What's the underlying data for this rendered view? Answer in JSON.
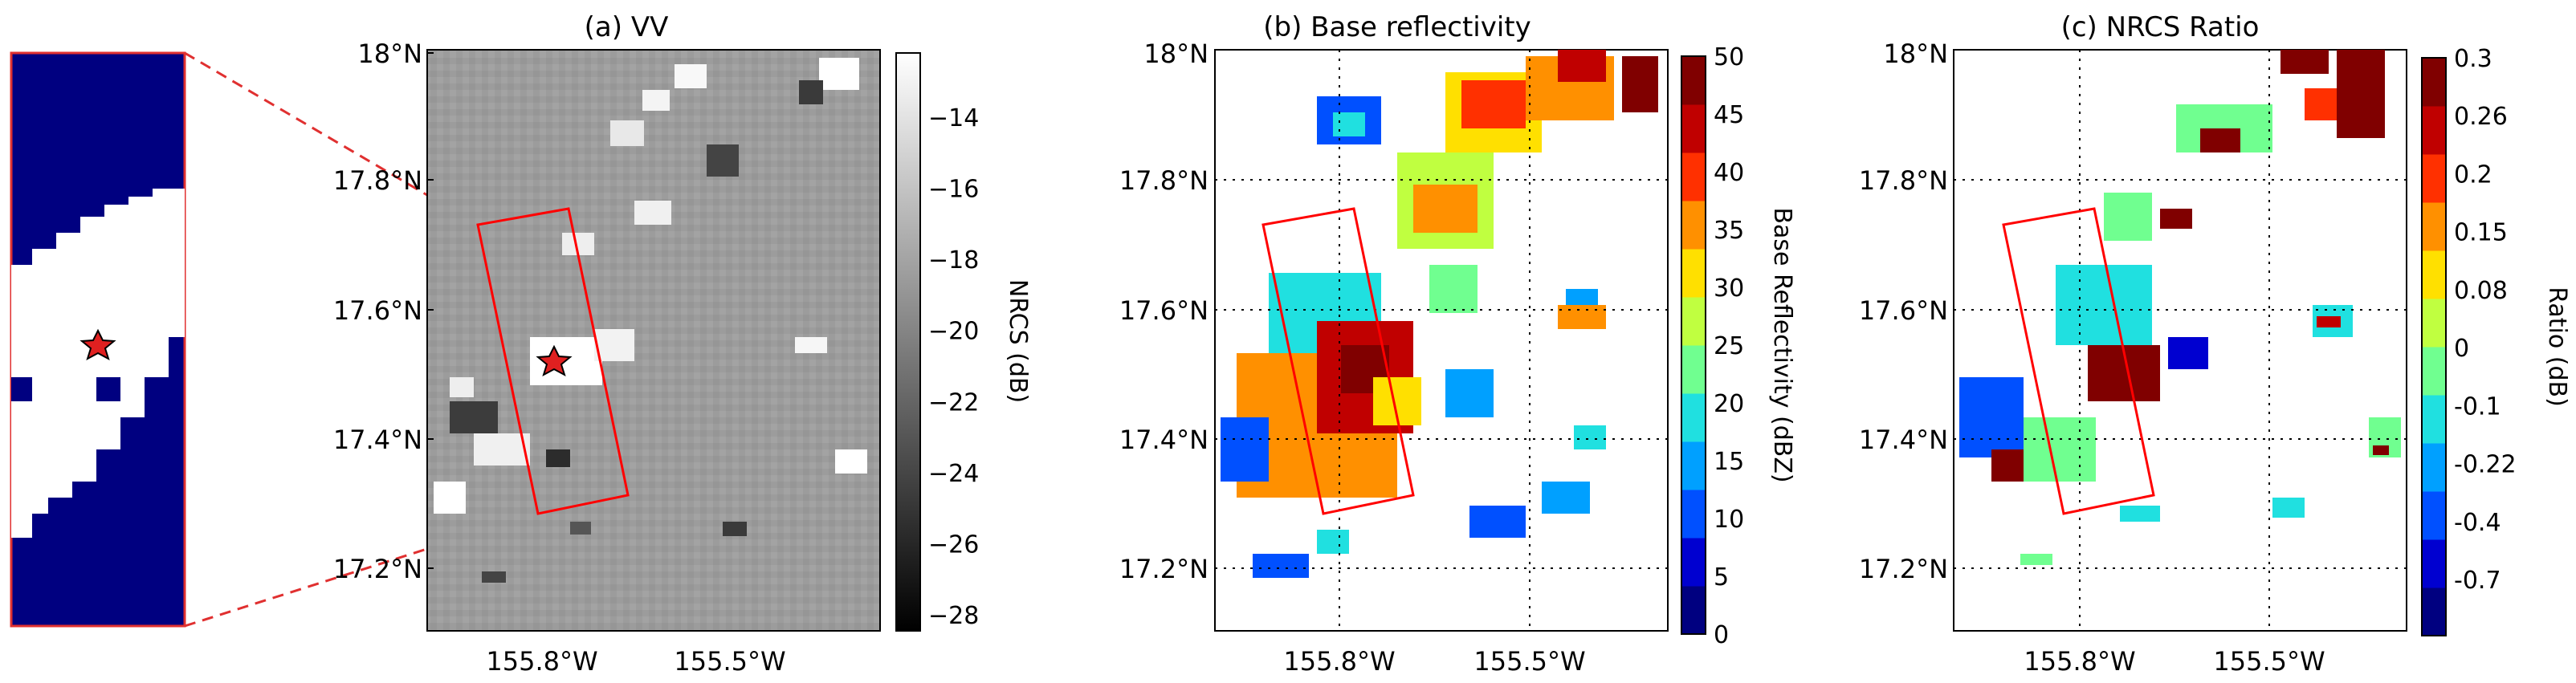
{
  "inset": {
    "star": "star"
  },
  "panels": {
    "a": {
      "title": "(a) VV",
      "y_ticks": [
        "18°N",
        "17.8°N",
        "17.6°N",
        "17.4°N",
        "17.2°N"
      ],
      "x_ticks": [
        "155.8°W",
        "155.5°W"
      ],
      "colorbar": {
        "label": "NRCS (dB)",
        "ticks": [
          "−14",
          "−16",
          "−18",
          "−20",
          "−22",
          "−24",
          "−26",
          "−28"
        ],
        "colors": [
          "#ffffff",
          "#000000"
        ]
      }
    },
    "b": {
      "title": "(b) Base  reflectivity",
      "y_ticks": [
        "18°N",
        "17.8°N",
        "17.6°N",
        "17.4°N",
        "17.2°N"
      ],
      "x_ticks": [
        "155.8°W",
        "155.5°W"
      ],
      "colorbar": {
        "label": "Base  Reflectivity (dBZ)",
        "ticks": [
          "50",
          "45",
          "40",
          "35",
          "30",
          "25",
          "20",
          "15",
          "10",
          "5",
          "0"
        ],
        "colors": [
          "#000080",
          "#0000d0",
          "#0050ff",
          "#00a0ff",
          "#20e0e0",
          "#70ff90",
          "#c0ff40",
          "#ffe000",
          "#ff9000",
          "#ff3000",
          "#c00000",
          "#800000"
        ]
      }
    },
    "c": {
      "title": "(c) NRCS  Ratio",
      "y_ticks": [
        "18°N",
        "17.8°N",
        "17.6°N",
        "17.4°N",
        "17.2°N"
      ],
      "x_ticks": [
        "155.8°W",
        "155.5°W"
      ],
      "colorbar": {
        "label": "Ratio (dB)",
        "ticks": [
          "0.3",
          "0.26",
          "0.2",
          "0.15",
          "0.08",
          "0",
          "-0.1",
          "-0.22",
          "-0.4",
          "-0.7"
        ],
        "colors": [
          "#000080",
          "#0000d0",
          "#0050ff",
          "#00a0ff",
          "#20e0e0",
          "#70ff90",
          "#c0ff40",
          "#ffe000",
          "#ff9000",
          "#ff3000",
          "#c00000",
          "#800000"
        ]
      }
    }
  },
  "colors": {
    "box": "#ff0000",
    "inset_fill": "#000080",
    "star_fill": "#e02020"
  }
}
